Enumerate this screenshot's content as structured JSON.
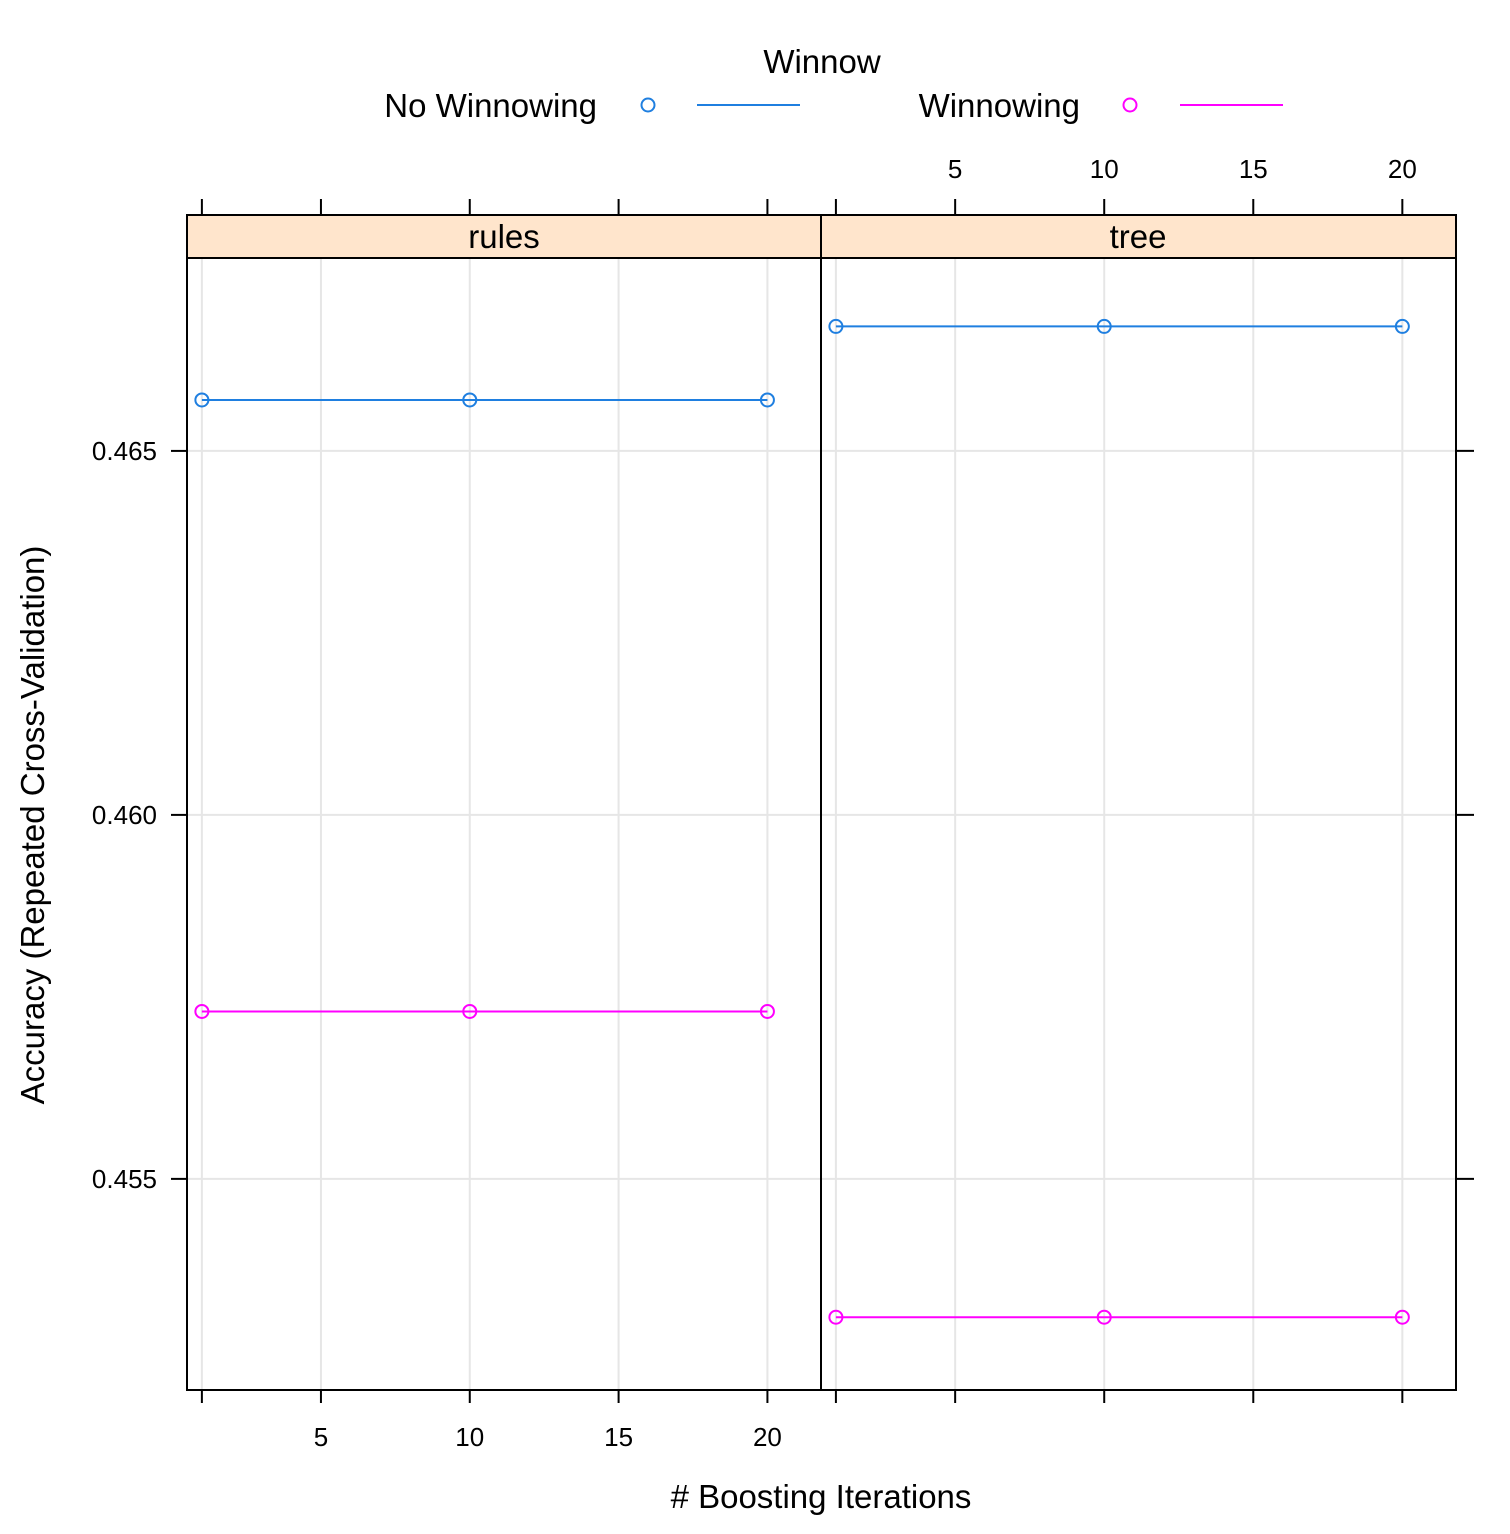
{
  "chart_data": {
    "type": "line",
    "legend": {
      "title": "Winnow",
      "placement": "top",
      "entries": [
        {
          "label": "No Winnowing",
          "color": "#1f7fe0"
        },
        {
          "label": "Winnowing",
          "color": "#ff00ff"
        }
      ]
    },
    "xlabel": "# Boosting Iterations",
    "ylabel": "Accuracy (Repeated Cross-Validation)",
    "xlim": [
      0.5,
      21.8
    ],
    "ylim": [
      0.4521,
      0.46765
    ],
    "x_ticks": [
      5,
      10,
      15,
      20
    ],
    "y_ticks": [
      0.455,
      0.46,
      0.465
    ],
    "y_tick_labels": [
      "0.455",
      "0.460",
      "0.465"
    ],
    "grid": true,
    "strip_color": "#ffe5cc",
    "panels": [
      {
        "title": "rules",
        "series": [
          {
            "name": "No Winnowing",
            "x": [
              1,
              10,
              20
            ],
            "y": [
              0.4657,
              0.4657,
              0.4657
            ]
          },
          {
            "name": "Winnowing",
            "x": [
              1,
              10,
              20
            ],
            "y": [
              0.4573,
              0.4573,
              0.4573
            ]
          }
        ]
      },
      {
        "title": "tree",
        "series": [
          {
            "name": "No Winnowing",
            "x": [
              1,
              10,
              20
            ],
            "y": [
              0.46671,
              0.46671,
              0.46671
            ]
          },
          {
            "name": "Winnowing",
            "x": [
              1,
              10,
              20
            ],
            "y": [
              0.4531,
              0.4531,
              0.4531
            ]
          }
        ]
      }
    ]
  }
}
